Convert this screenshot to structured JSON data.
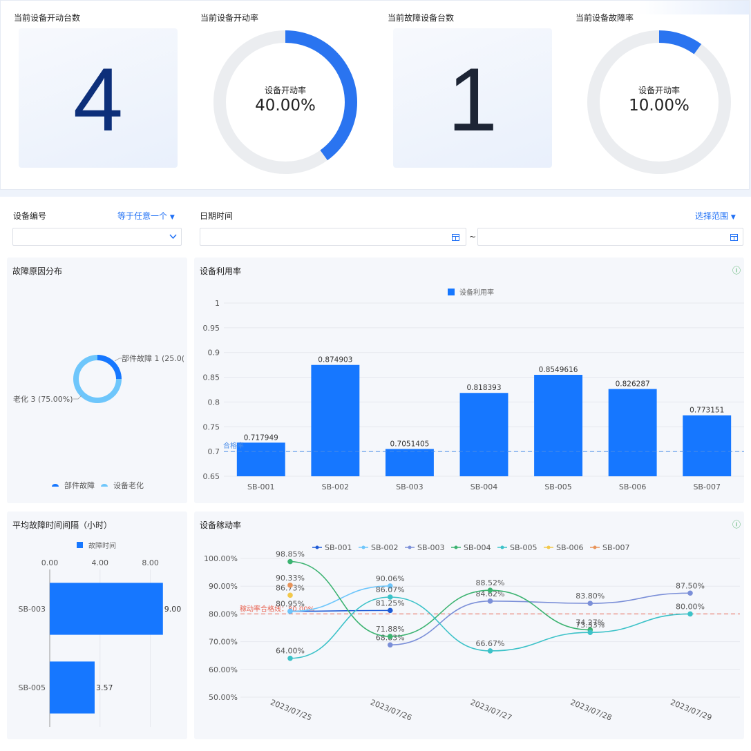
{
  "kpis": {
    "running_count_label": "当前设备开动台数",
    "running_count": "4",
    "running_rate_label": "当前设备开动率",
    "running_rate_title": "设备开动率",
    "running_rate_value": "40.00%",
    "running_rate_fraction": 0.4,
    "fault_count_label": "当前故障设备台数",
    "fault_count": "1",
    "fault_rate_label": "当前设备故障率",
    "fault_rate_title": "设备开动率",
    "fault_rate_value": "10.00%",
    "fault_rate_fraction": 0.1
  },
  "filters": {
    "device_label": "设备编号",
    "device_mode": "等于任意一个",
    "date_label": "日期时间",
    "date_mode": "选择范围",
    "range_separator": "~"
  },
  "colors": {
    "accent": "#1e6ff5",
    "bar": "#1677ff",
    "gauge_track": "#ebedf0",
    "threshold": "#4a8de8",
    "threshold_red": "#e86452",
    "info": "#3aa655"
  },
  "panels": {
    "fault_reason": "故障原因分布",
    "utilization": "设备利用率",
    "mtbf": "平均故障时间间隔（小时）",
    "mobility": "设备稼动率"
  },
  "chart_data": [
    {
      "type": "pie",
      "title": "故障原因分布",
      "slices": [
        {
          "name": "部件故障",
          "value": 1,
          "label": "部件故障 1 (25.0("
        },
        {
          "name": "设备老化",
          "value": 3,
          "label": "老化 3 (75.00%)"
        }
      ],
      "legend": [
        "部件故障",
        "设备老化"
      ],
      "colors": [
        "#1677ff",
        "#6ec6fb"
      ]
    },
    {
      "type": "bar",
      "title": "设备利用率",
      "legend": "设备利用率",
      "categories": [
        "SB-001",
        "SB-002",
        "SB-003",
        "SB-004",
        "SB-005",
        "SB-006",
        "SB-007"
      ],
      "values": [
        0.717949,
        0.874903,
        0.7051405,
        0.818393,
        0.8549616,
        0.826287,
        0.773151
      ],
      "labels": [
        "0.717949",
        "0.874903",
        "0.7051405",
        "0.818393",
        "0.8549616",
        "0.826287",
        "0.773151"
      ],
      "ylim": [
        0.65,
        1
      ],
      "yticks": [
        "0.65",
        "0.7",
        "0.75",
        "0.8",
        "0.85",
        "0.9",
        "0.95",
        "1"
      ],
      "threshold": 0.7,
      "threshold_label": "合格率",
      "grid": true
    },
    {
      "type": "bar",
      "orientation": "horizontal",
      "title": "平均故障时间间隔（小时）",
      "legend": "故障时间",
      "categories": [
        "SB-003",
        "SB-005"
      ],
      "values": [
        9.0,
        3.57
      ],
      "labels": [
        "9.00",
        "3.57"
      ],
      "xlim": [
        0,
        10
      ],
      "xticks": [
        "0.00",
        "4.00",
        "8.00"
      ]
    },
    {
      "type": "line",
      "title": "设备稼动率",
      "x": [
        "2023/07/25",
        "2023/07/26",
        "2023/07/27",
        "2023/07/28",
        "2023/07/29"
      ],
      "ylim": [
        50,
        100
      ],
      "yticks": [
        "50.00%",
        "60.00%",
        "70.00%",
        "80.00%",
        "90.00%",
        "100.00%"
      ],
      "threshold": 80,
      "threshold_label": "稼动率合格线：80.00%",
      "series": [
        {
          "name": "SB-001",
          "color": "#1e5bd6",
          "values": [
            80.95,
            81.25,
            null,
            null,
            null
          ],
          "labels": [
            "80.95%",
            "81.25%",
            "",
            "",
            ""
          ]
        },
        {
          "name": "SB-002",
          "color": "#6ec6fb",
          "values": [
            80.95,
            90.06,
            null,
            null,
            null
          ],
          "labels": [
            "",
            "90.06%",
            "",
            "",
            ""
          ]
        },
        {
          "name": "SB-003",
          "color": "#7b8fd8",
          "values": [
            null,
            68.83,
            84.62,
            83.8,
            87.5
          ],
          "labels": [
            "",
            "68.83%",
            "84.62%",
            "83.80%",
            "87.50%"
          ]
        },
        {
          "name": "SB-004",
          "color": "#3cb371",
          "values": [
            98.85,
            71.88,
            88.52,
            74.27,
            null
          ],
          "labels": [
            "98.85%",
            "71.88%",
            "88.52%",
            "74.27%",
            ""
          ]
        },
        {
          "name": "SB-005",
          "color": "#3cc2c8",
          "values": [
            64.0,
            86.07,
            66.67,
            73.33,
            80.0
          ],
          "labels": [
            "64.00%",
            "86.07%",
            "66.67%",
            "73.33%",
            "80.00%"
          ]
        },
        {
          "name": "SB-006",
          "color": "#f2c84b",
          "values": [
            86.73,
            null,
            null,
            null,
            null
          ],
          "labels": [
            "86.73%",
            "",
            "",
            "",
            ""
          ]
        },
        {
          "name": "SB-007",
          "color": "#e8945a",
          "values": [
            90.33,
            null,
            null,
            null,
            null
          ],
          "labels": [
            "90.33%",
            "",
            "",
            "",
            ""
          ]
        }
      ],
      "grid": true
    }
  ]
}
